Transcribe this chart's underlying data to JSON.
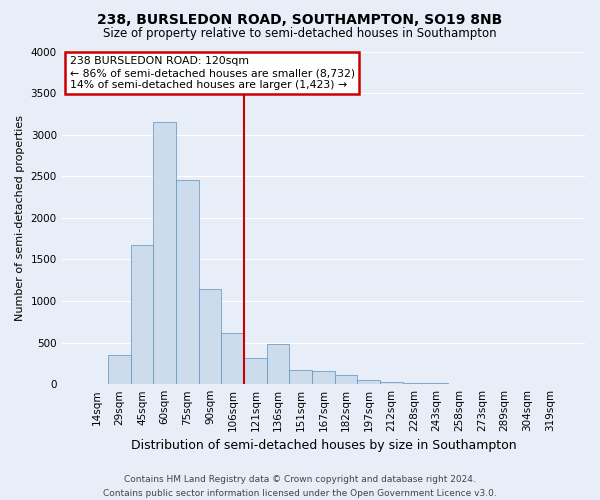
{
  "title": "238, BURSLEDON ROAD, SOUTHAMPTON, SO19 8NB",
  "subtitle": "Size of property relative to semi-detached houses in Southampton",
  "xlabel": "Distribution of semi-detached houses by size in Southampton",
  "ylabel": "Number of semi-detached properties",
  "bin_labels": [
    "14sqm",
    "29sqm",
    "45sqm",
    "60sqm",
    "75sqm",
    "90sqm",
    "106sqm",
    "121sqm",
    "136sqm",
    "151sqm",
    "167sqm",
    "182sqm",
    "197sqm",
    "212sqm",
    "228sqm",
    "243sqm",
    "258sqm",
    "273sqm",
    "289sqm",
    "304sqm",
    "319sqm"
  ],
  "bar_heights": [
    0,
    350,
    1670,
    3150,
    2450,
    1150,
    610,
    320,
    480,
    175,
    155,
    110,
    50,
    25,
    20,
    10,
    5,
    2,
    1,
    0,
    0
  ],
  "bar_color": "#ccdcec",
  "bar_edge_color": "#6090bb",
  "vline_color": "#cc0000",
  "annotation_title": "238 BURSLEDON ROAD: 120sqm",
  "annotation_line1": "← 86% of semi-detached houses are smaller (8,732)",
  "annotation_line2": "14% of semi-detached houses are larger (1,423) →",
  "annotation_box_color": "#cc0000",
  "annotation_bg": "#ffffff",
  "ylim": [
    0,
    4000
  ],
  "yticks": [
    0,
    500,
    1000,
    1500,
    2000,
    2500,
    3000,
    3500,
    4000
  ],
  "background_color": "#e8eef8",
  "grid_color": "#ffffff",
  "footer1": "Contains HM Land Registry data © Crown copyright and database right 2024.",
  "footer2": "Contains public sector information licensed under the Open Government Licence v3.0.",
  "title_fontsize": 10,
  "subtitle_fontsize": 8.5,
  "ylabel_fontsize": 8,
  "xlabel_fontsize": 9,
  "tick_fontsize": 7.5,
  "footer_fontsize": 6.5,
  "ann_fontsize": 7.8,
  "vline_x_index": 6.5
}
